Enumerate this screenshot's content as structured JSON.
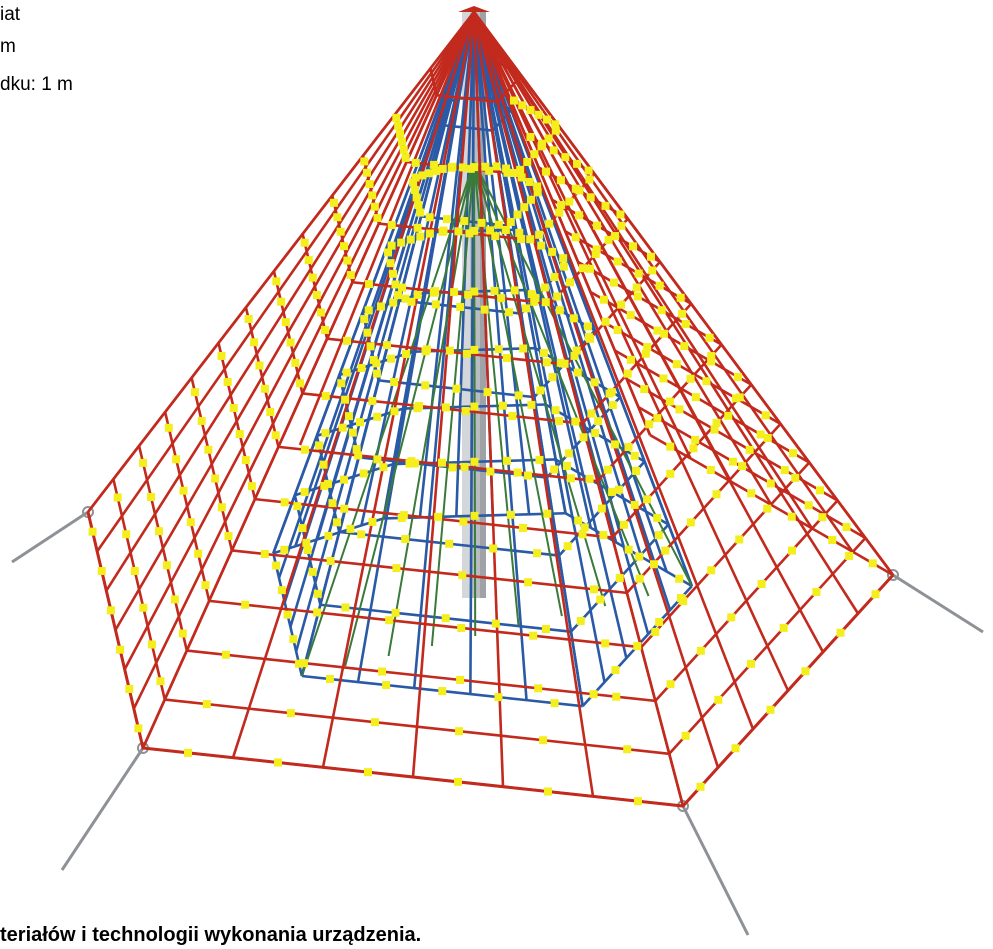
{
  "document": {
    "lines": [
      "iat",
      "m",
      "dku: 1 m"
    ],
    "footer": "teriałów i technologii wykonania urządzenia."
  },
  "illustration": {
    "subject": "rope-pyramid-climbing-net",
    "colors": {
      "outer_rope": "#c22a1e",
      "inner_rope_blue": "#2a5aa6",
      "inner_rope_green": "#3a7a3a",
      "connectors": "#f4ee1c",
      "mast": "#b9bcc0",
      "anchors": "#8e9297"
    }
  }
}
